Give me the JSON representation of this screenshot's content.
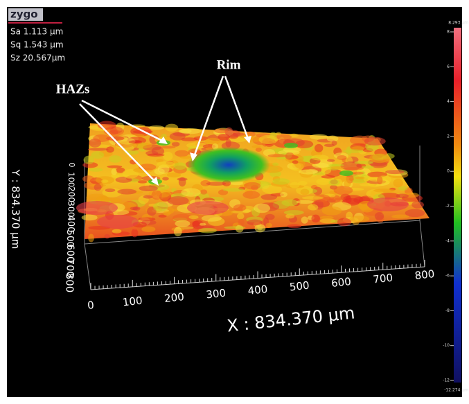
{
  "brand": "zygo",
  "stats": [
    "Sa 1.113  µm",
    "Sq 1.543  µm",
    "Sz 20.567µm"
  ],
  "annotations": {
    "rim": "Rim",
    "hazs": "HAZs"
  },
  "x_axis": {
    "title": "X : 834.370 µm",
    "ticks": [
      "0",
      "100",
      "200",
      "300",
      "400",
      "500",
      "600",
      "700",
      "800"
    ]
  },
  "y_axis": {
    "title": "Y : 834.370 µm",
    "ticks": [
      "0",
      "100",
      "200",
      "300",
      "400",
      "500",
      "600",
      "700",
      "800"
    ]
  },
  "color_bar": {
    "max_label": "8.293 µm",
    "min_label": "-12.274 µm",
    "ticks": [
      "8",
      "6",
      "4",
      "2",
      "0",
      "-2",
      "-4",
      "-6",
      "-8",
      "-10",
      "-12"
    ]
  }
}
